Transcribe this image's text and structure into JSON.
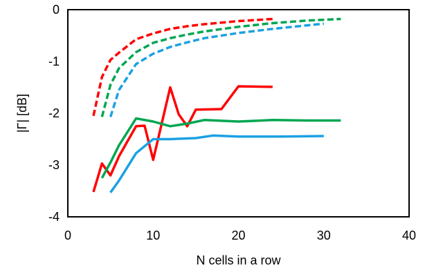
{
  "chart_data": {
    "type": "line",
    "title": "",
    "xlabel": "N cells in a row",
    "ylabel": "|Γ| [dB]",
    "xlim": [
      0,
      40
    ],
    "ylim": [
      -4,
      0
    ],
    "x_ticks": [
      0,
      10,
      20,
      30,
      40
    ],
    "x_tick_labels": [
      "0",
      "10",
      "20",
      "30",
      "40"
    ],
    "y_ticks": [
      0,
      -1,
      -2,
      -3,
      -4
    ],
    "y_tick_labels": [
      "0",
      "-1",
      "-2",
      "-3",
      "-4"
    ],
    "grid": false,
    "legend": "none",
    "series": [
      {
        "color": "#FF0000",
        "style": "dashed",
        "x": [
          3,
          4,
          5,
          6,
          8,
          10,
          12,
          14,
          16,
          18,
          20,
          22,
          24
        ],
        "y": [
          -2.05,
          -1.3,
          -0.97,
          -0.83,
          -0.57,
          -0.46,
          -0.37,
          -0.32,
          -0.28,
          -0.25,
          -0.22,
          -0.2,
          -0.18
        ]
      },
      {
        "color": "#00A651",
        "style": "dashed",
        "x": [
          4,
          5,
          6,
          8,
          10,
          12,
          14,
          16,
          20,
          24,
          28,
          32
        ],
        "y": [
          -2.07,
          -1.45,
          -1.13,
          -0.82,
          -0.64,
          -0.55,
          -0.48,
          -0.42,
          -0.33,
          -0.26,
          -0.21,
          -0.18
        ]
      },
      {
        "color": "#1BA1E2",
        "style": "dashed",
        "x": [
          5,
          6,
          8,
          10,
          12,
          14,
          16,
          20,
          24,
          27,
          30
        ],
        "y": [
          -2.07,
          -1.55,
          -1.05,
          -0.85,
          -0.72,
          -0.63,
          -0.55,
          -0.45,
          -0.37,
          -0.32,
          -0.27
        ]
      },
      {
        "color": "#FF0000",
        "style": "solid",
        "x": [
          3,
          4,
          5,
          6,
          8,
          9,
          10,
          11,
          12,
          13,
          14,
          15,
          18,
          20,
          24
        ],
        "y": [
          -3.52,
          -2.97,
          -3.2,
          -2.83,
          -2.25,
          -2.24,
          -2.9,
          -2.2,
          -1.5,
          -2.02,
          -2.25,
          -1.93,
          -1.92,
          -1.48,
          -1.49
        ]
      },
      {
        "color": "#00A651",
        "style": "solid",
        "x": [
          4,
          5,
          6,
          8,
          10,
          12,
          14,
          16,
          20,
          24,
          28,
          32
        ],
        "y": [
          -3.25,
          -2.95,
          -2.62,
          -2.1,
          -2.16,
          -2.25,
          -2.2,
          -2.13,
          -2.16,
          -2.13,
          -2.14,
          -2.14
        ]
      },
      {
        "color": "#1BA1E2",
        "style": "solid",
        "x": [
          5,
          6,
          8,
          10,
          12,
          15,
          17,
          20,
          25,
          30
        ],
        "y": [
          -3.53,
          -3.3,
          -2.77,
          -2.5,
          -2.5,
          -2.48,
          -2.43,
          -2.45,
          -2.45,
          -2.44
        ]
      }
    ]
  }
}
